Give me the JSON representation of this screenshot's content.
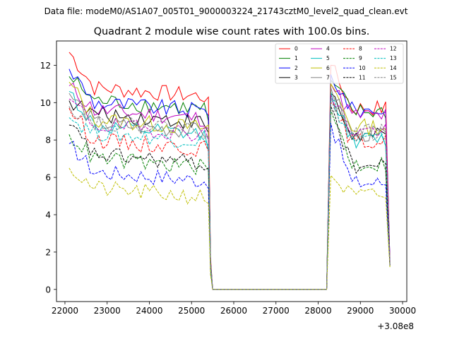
{
  "chart_data": {
    "type": "line",
    "suptitle": "Data file: modeM0/AS1A07_005T01_9000003224_21743cztM0_level2_quad_clean.evt",
    "title": "Quadrant 2 module wise count rates with 100.0s bins.",
    "xlabel": "",
    "ylabel": "",
    "x_offset_label": "+3.08e8",
    "xlim": [
      21800,
      30100
    ],
    "ylim": [
      -0.65,
      13.3
    ],
    "xticks": [
      22000,
      23000,
      24000,
      25000,
      26000,
      27000,
      28000,
      29000,
      30000
    ],
    "yticks": [
      0,
      2,
      4,
      6,
      8,
      10,
      12
    ],
    "x_start": 22100,
    "x_step": 100,
    "gaps": [
      [
        25500,
        28200
      ]
    ],
    "gap_value": 0,
    "x_end": 29700,
    "legend_location": "upper right",
    "series": [
      {
        "name": "0",
        "color": "#ff0000",
        "dash": "solid",
        "start": 12.7,
        "seg1_level": 10.4,
        "seg1_end": 10.3,
        "seg2_start": 12.0,
        "seg2_level": 9.7,
        "last": 1.5
      },
      {
        "name": "1",
        "color": "#008000",
        "dash": "solid",
        "start": 11.4,
        "seg1_level": 9.7,
        "seg1_end": 9.0,
        "seg2_start": 11.2,
        "seg2_level": 9.5,
        "last": 1.4
      },
      {
        "name": "2",
        "color": "#0000ff",
        "dash": "solid",
        "start": 11.8,
        "seg1_level": 9.6,
        "seg1_end": 9.3,
        "seg2_start": 11.5,
        "seg2_level": 9.6,
        "last": 1.6
      },
      {
        "name": "3",
        "color": "#000000",
        "dash": "solid",
        "start": 10.1,
        "seg1_level": 9.0,
        "seg1_end": 8.4,
        "seg2_start": 10.5,
        "seg2_level": 8.2,
        "last": 1.3
      },
      {
        "name": "4",
        "color": "#bf00bf",
        "dash": "solid",
        "start": 10.9,
        "seg1_level": 9.2,
        "seg1_end": 8.6,
        "seg2_start": 11.0,
        "seg2_level": 9.3,
        "last": 1.5
      },
      {
        "name": "5",
        "color": "#00bfbf",
        "dash": "solid",
        "start": 10.6,
        "seg1_level": 8.3,
        "seg1_end": 7.4,
        "seg2_start": 10.6,
        "seg2_level": 8.0,
        "last": 1.4
      },
      {
        "name": "6",
        "color": "#bfbf00",
        "dash": "solid",
        "start": 11.1,
        "seg1_level": 8.7,
        "seg1_end": 8.8,
        "seg2_start": 11.0,
        "seg2_level": 8.7,
        "last": 1.4
      },
      {
        "name": "7",
        "color": "#808080",
        "dash": "solid",
        "start": 10.5,
        "seg1_level": 8.5,
        "seg1_end": 8.2,
        "seg2_start": 10.8,
        "seg2_level": 8.3,
        "last": 1.3
      },
      {
        "name": "8",
        "color": "#ff0000",
        "dash": "dashed",
        "start": 9.7,
        "seg1_level": 7.6,
        "seg1_end": 7.4,
        "seg2_start": 10.0,
        "seg2_level": 7.9,
        "last": 1.3
      },
      {
        "name": "9",
        "color": "#008000",
        "dash": "dashed",
        "start": 8.3,
        "seg1_level": 6.6,
        "seg1_end": 6.4,
        "seg2_start": 9.6,
        "seg2_level": 6.7,
        "last": 1.2
      },
      {
        "name": "10",
        "color": "#0000ff",
        "dash": "dashed",
        "start": 7.8,
        "seg1_level": 5.9,
        "seg1_end": 5.4,
        "seg2_start": 8.9,
        "seg2_level": 5.7,
        "last": 1.3
      },
      {
        "name": "11",
        "color": "#000000",
        "dash": "dashed",
        "start": 8.8,
        "seg1_level": 6.8,
        "seg1_end": 6.5,
        "seg2_start": 9.8,
        "seg2_level": 6.6,
        "last": 1.3
      },
      {
        "name": "12",
        "color": "#bf00bf",
        "dash": "dashed",
        "start": 10.2,
        "seg1_level": 8.4,
        "seg1_end": 8.0,
        "seg2_start": 10.4,
        "seg2_level": 8.5,
        "last": 1.4
      },
      {
        "name": "13",
        "color": "#00bfbf",
        "dash": "dashed",
        "start": 9.2,
        "seg1_level": 8.0,
        "seg1_end": 7.7,
        "seg2_start": 10.2,
        "seg2_level": 8.0,
        "last": 1.3
      },
      {
        "name": "14",
        "color": "#bfbf00",
        "dash": "dashed",
        "start": 6.5,
        "seg1_level": 5.0,
        "seg1_end": 4.6,
        "seg2_start": 6.1,
        "seg2_level": 5.0,
        "last": 1.2
      },
      {
        "name": "15",
        "color": "#808080",
        "dash": "dashed",
        "start": 9.8,
        "seg1_level": 8.6,
        "seg1_end": 8.2,
        "seg2_start": 10.3,
        "seg2_level": 8.4,
        "last": 1.3
      }
    ]
  }
}
